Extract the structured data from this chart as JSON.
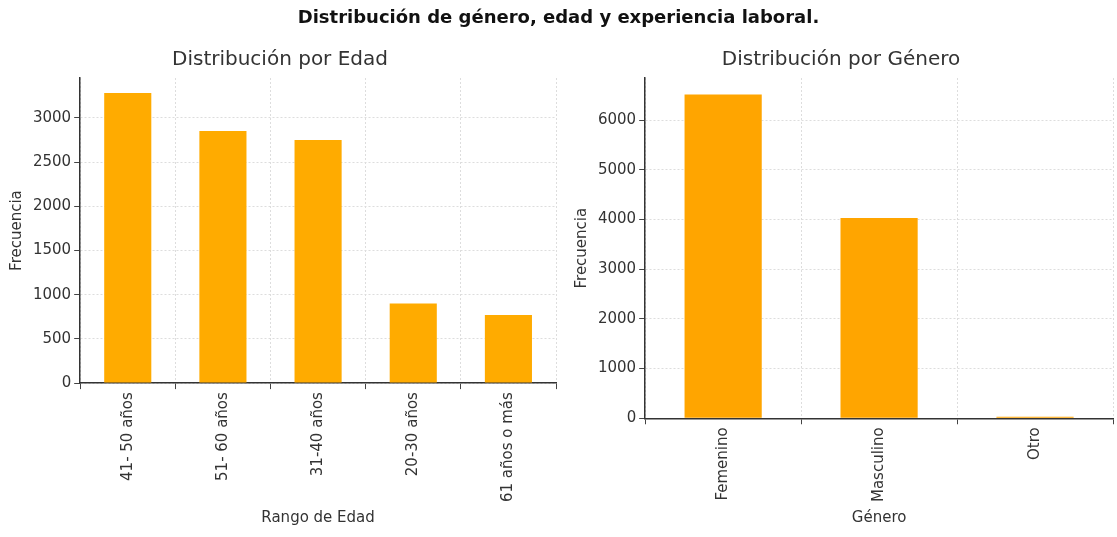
{
  "chart_data": [
    {
      "type": "bar",
      "title": "Distribución por Edad",
      "xlabel": "Rango de Edad",
      "ylabel": "Frecuencia",
      "annotations": [
        "Distribución de género, edad y experiencia laboral."
      ],
      "categories": [
        "41- 50 años",
        "51- 60 años",
        "31-40 años",
        "20-30 años",
        "61 años o más"
      ],
      "values": [
        3280,
        2850,
        2750,
        900,
        770
      ],
      "color": "#ffab00",
      "ylim": [
        0,
        3450
      ],
      "yticks": [
        0,
        500,
        1000,
        1500,
        2000,
        2500,
        3000
      ],
      "grid": true,
      "legend": false
    },
    {
      "type": "bar",
      "title": "Distribución por Género",
      "xlabel": "Género",
      "ylabel": "Frecuencia",
      "categories": [
        "Femenino",
        "Masculino",
        "Otro"
      ],
      "values": [
        6520,
        4030,
        30
      ],
      "color": "#ffa500",
      "ylim": [
        0,
        6850
      ],
      "yticks": [
        0,
        1000,
        2000,
        3000,
        4000,
        5000,
        6000
      ],
      "grid": true,
      "legend": false
    }
  ]
}
